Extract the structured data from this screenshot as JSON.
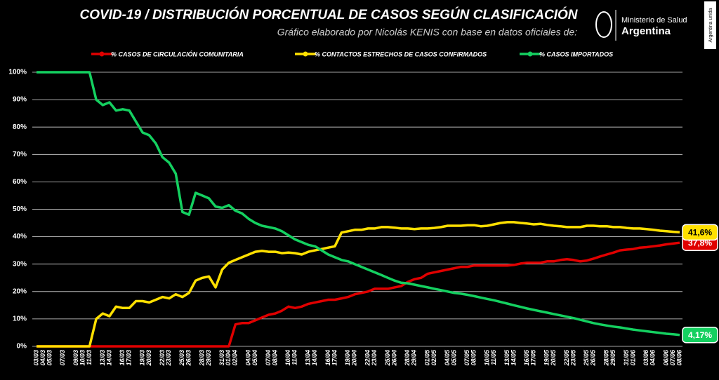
{
  "chart_data": {
    "type": "line",
    "title": "COVID-19  /  DISTRIBUCIÓN PORCENTUAL DE CASOS SEGÚN CLASIFICACIÓN",
    "subtitle": "Gráfico elaborado por Nicolás KENIS con base en datos oficiales de:",
    "categories": [
      "03/03",
      "04/03",
      "05/03",
      null,
      "07/03",
      null,
      "09/03",
      "10/03",
      "11/03",
      null,
      "13/03",
      "14/03",
      null,
      "16/03",
      "17/03",
      null,
      "19/03",
      "20/03",
      null,
      "22/03",
      "23/03",
      null,
      "25/03",
      "26/03",
      null,
      "28/03",
      "29/03",
      null,
      "31/03",
      "01/04",
      "02/04",
      null,
      "04/04",
      "05/04",
      null,
      "07/04",
      "08/04",
      null,
      "10/04",
      "11/04",
      null,
      "13/04",
      "14/04",
      null,
      "16/04",
      "17/04",
      null,
      "19/04",
      "20/04",
      null,
      "22/04",
      "23/04",
      null,
      "25/04",
      "26/04",
      null,
      "28/04",
      "29/04",
      null,
      "01/05",
      "02/05",
      null,
      "04/05",
      "05/05",
      null,
      "07/05",
      "08/05",
      null,
      "10/05",
      "11/05",
      null,
      "13/05",
      "14/05",
      null,
      "16/05",
      "17/05",
      null,
      "19/05",
      "20/05",
      null,
      "22/05",
      "23/05",
      null,
      "25/05",
      "26/05",
      null,
      "28/05",
      "29/05",
      null,
      "31/05",
      "01/06",
      null,
      "03/06",
      "04/06",
      null,
      "06/06",
      "07/06",
      "08/06"
    ],
    "series": [
      {
        "name": "% CASOS DE CIRCULACIÓN COMUNITARIA",
        "color": "#e00000",
        "label_text_color": "#ffffff",
        "end_label": "37,8%",
        "values": [
          0,
          0,
          0,
          0,
          0,
          0,
          0,
          0,
          0,
          0,
          0,
          0,
          0,
          0,
          0,
          0,
          0,
          0,
          0,
          0,
          0,
          0,
          0,
          0,
          0,
          0,
          0,
          0,
          0,
          0,
          8,
          8.5,
          8.5,
          9.5,
          10.5,
          11.5,
          12,
          13,
          14.5,
          14,
          14.5,
          15.5,
          16,
          16.5,
          17,
          17,
          17.5,
          18,
          19,
          19.5,
          20,
          21,
          21,
          21,
          21.5,
          22,
          23.5,
          24.5,
          25,
          26.5,
          27,
          27.5,
          28,
          28.5,
          29,
          29,
          29.5,
          29.5,
          29.5,
          29.5,
          29.5,
          29.5,
          29.7,
          30.2,
          30.5,
          30.5,
          30.5,
          31,
          31,
          31.5,
          31.8,
          31.5,
          31,
          31.3,
          32,
          32.8,
          33.5,
          34.2,
          35,
          35.3,
          35.5,
          36,
          36.2,
          36.5,
          36.8,
          37.2,
          37.5,
          37.8
        ]
      },
      {
        "name": "% CONTACTOS ESTRECHOS DE CASOS CONFIRMADOS",
        "color": "#ffe000",
        "label_text_color": "#000000",
        "end_label": "41,6%",
        "values": [
          0,
          0,
          0,
          0,
          0,
          0,
          0,
          0,
          0,
          10,
          12,
          11,
          14.5,
          14,
          14,
          16.5,
          16.5,
          16,
          17,
          18,
          17.5,
          19,
          18,
          19.5,
          24,
          25,
          25.5,
          21.5,
          28,
          30.5,
          31.5,
          32.5,
          33.5,
          34.5,
          34.8,
          34.5,
          34.5,
          34,
          34.2,
          34,
          33.5,
          34.5,
          35,
          35.5,
          36,
          36.5,
          41.5,
          42,
          42.5,
          42.5,
          43,
          43,
          43.5,
          43.5,
          43.3,
          43,
          43,
          42.8,
          43,
          43,
          43.2,
          43.5,
          44,
          44,
          44,
          44.2,
          44.2,
          43.8,
          44,
          44.5,
          45,
          45.3,
          45.3,
          45,
          44.8,
          44.5,
          44.7,
          44.3,
          44,
          43.8,
          43.5,
          43.5,
          43.5,
          44,
          44,
          43.8,
          43.8,
          43.5,
          43.5,
          43.2,
          43,
          43,
          42.8,
          42.5,
          42.2,
          42,
          41.8,
          41.6
        ]
      },
      {
        "name": "% CASOS IMPORTADOS",
        "color": "#14d060",
        "label_text_color": "#ffffff",
        "end_label": "4,17%",
        "values": [
          100,
          100,
          100,
          100,
          100,
          100,
          100,
          100,
          100,
          90,
          88,
          89,
          86,
          86.5,
          86,
          82,
          78,
          77,
          74,
          69,
          67,
          63,
          49,
          48,
          56,
          55,
          54,
          51,
          50.5,
          51.5,
          49.5,
          48.5,
          46.5,
          45,
          44,
          43.5,
          43,
          42,
          40.5,
          39,
          38,
          37,
          36.5,
          35,
          33.5,
          32.5,
          31.5,
          31,
          30,
          29,
          28,
          27,
          26,
          25,
          24,
          23.2,
          23,
          22.5,
          22,
          21.5,
          21,
          20.5,
          20,
          19.5,
          19.2,
          18.8,
          18.3,
          17.8,
          17.3,
          16.8,
          16.2,
          15.6,
          15,
          14.4,
          13.8,
          13.3,
          12.8,
          12.3,
          11.8,
          11.3,
          10.8,
          10.3,
          9.7,
          9.1,
          8.5,
          8,
          7.6,
          7.2,
          6.9,
          6.5,
          6.1,
          5.8,
          5.5,
          5.2,
          4.9,
          4.6,
          4.4,
          4.17
        ]
      }
    ],
    "ylim": [
      0,
      100
    ],
    "yticks": [
      {
        "value": 0,
        "label": "0%"
      },
      {
        "value": 10,
        "label": "10%"
      },
      {
        "value": 20,
        "label": "20%"
      },
      {
        "value": 30,
        "label": "30%"
      },
      {
        "value": 40,
        "label": "40%"
      },
      {
        "value": 50,
        "label": "50%"
      },
      {
        "value": 60,
        "label": "60%"
      },
      {
        "value": 70,
        "label": "70%"
      },
      {
        "value": 80,
        "label": "80%"
      },
      {
        "value": 90,
        "label": "90%"
      },
      {
        "value": 100,
        "label": "100%"
      }
    ],
    "grid": true
  },
  "logo": {
    "ministry": "Ministerio de Salud",
    "country": "Argentina",
    "badge": "Argentina unida"
  }
}
